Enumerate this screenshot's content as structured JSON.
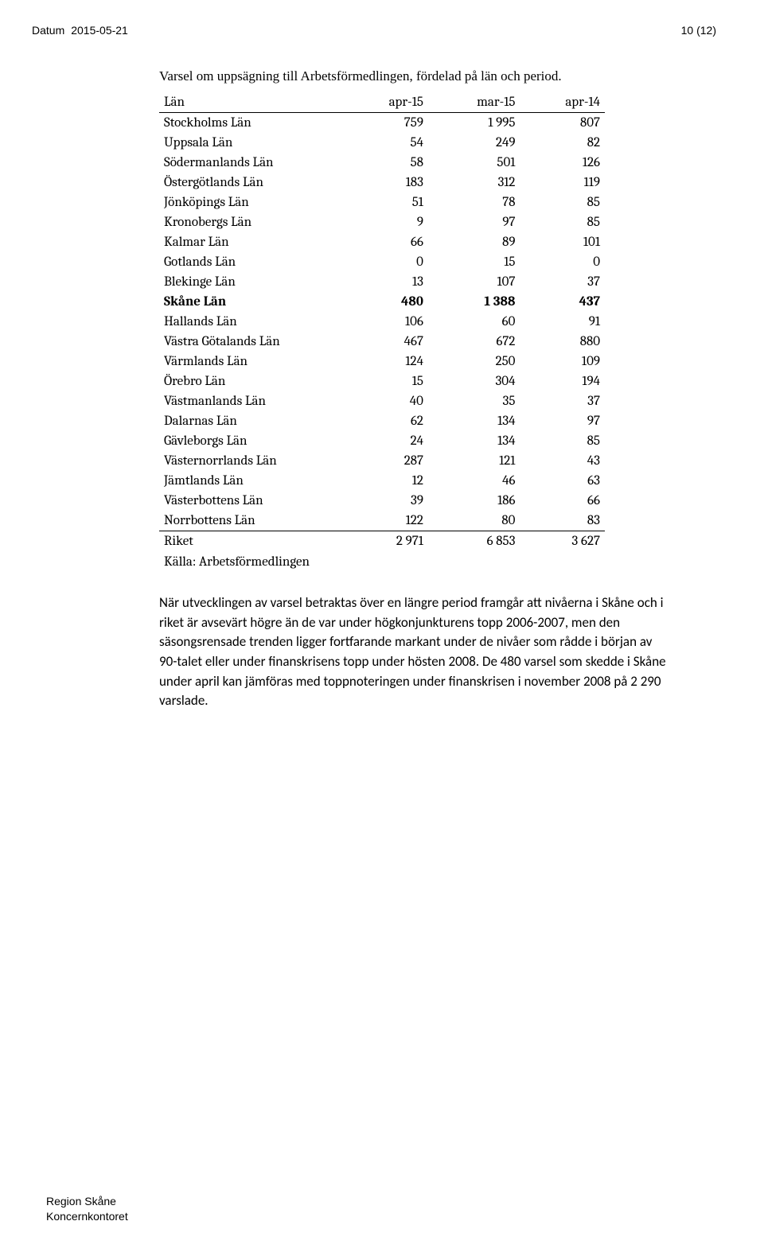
{
  "header": {
    "datum_label": "Datum",
    "date": "2015-05-21",
    "page_indicator": "10 (12)"
  },
  "intro": "Varsel om uppsägning till Arbetsförmedlingen, fördelad på län och period.",
  "table": {
    "columns": [
      "Län",
      "apr-15",
      "mar-15",
      "apr-14"
    ],
    "rows": [
      {
        "name": "Stockholms Län",
        "c1": "759",
        "c2": "1 995",
        "c3": "807",
        "bold": false
      },
      {
        "name": "Uppsala Län",
        "c1": "54",
        "c2": "249",
        "c3": "82",
        "bold": false
      },
      {
        "name": "Södermanlands Län",
        "c1": "58",
        "c2": "501",
        "c3": "126",
        "bold": false
      },
      {
        "name": "Östergötlands Län",
        "c1": "183",
        "c2": "312",
        "c3": "119",
        "bold": false
      },
      {
        "name": "Jönköpings Län",
        "c1": "51",
        "c2": "78",
        "c3": "85",
        "bold": false
      },
      {
        "name": "Kronobergs Län",
        "c1": "9",
        "c2": "97",
        "c3": "85",
        "bold": false
      },
      {
        "name": "Kalmar Län",
        "c1": "66",
        "c2": "89",
        "c3": "101",
        "bold": false
      },
      {
        "name": "Gotlands Län",
        "c1": "0",
        "c2": "15",
        "c3": "0",
        "bold": false
      },
      {
        "name": "Blekinge Län",
        "c1": "13",
        "c2": "107",
        "c3": "37",
        "bold": false
      },
      {
        "name": "Skåne Län",
        "c1": "480",
        "c2": "1 388",
        "c3": "437",
        "bold": true
      },
      {
        "name": "Hallands Län",
        "c1": "106",
        "c2": "60",
        "c3": "91",
        "bold": false
      },
      {
        "name": "Västra Götalands Län",
        "c1": "467",
        "c2": "672",
        "c3": "880",
        "bold": false
      },
      {
        "name": "Värmlands Län",
        "c1": "124",
        "c2": "250",
        "c3": "109",
        "bold": false
      },
      {
        "name": "Örebro Län",
        "c1": "15",
        "c2": "304",
        "c3": "194",
        "bold": false
      },
      {
        "name": "Västmanlands Län",
        "c1": "40",
        "c2": "35",
        "c3": "37",
        "bold": false
      },
      {
        "name": "Dalarnas Län",
        "c1": "62",
        "c2": "134",
        "c3": "97",
        "bold": false
      },
      {
        "name": "Gävleborgs Län",
        "c1": "24",
        "c2": "134",
        "c3": "85",
        "bold": false
      },
      {
        "name": "Västernorrlands Län",
        "c1": "287",
        "c2": "121",
        "c3": "43",
        "bold": false
      },
      {
        "name": "Jämtlands Län",
        "c1": "12",
        "c2": "46",
        "c3": "63",
        "bold": false
      },
      {
        "name": "Västerbottens Län",
        "c1": "39",
        "c2": "186",
        "c3": "66",
        "bold": false
      },
      {
        "name": "Norrbottens Län",
        "c1": "122",
        "c2": "80",
        "c3": "83",
        "bold": false
      }
    ],
    "total": {
      "name": "Riket",
      "c1": "2 971",
      "c2": "6 853",
      "c3": "3 627"
    },
    "source": "Källa: Arbetsförmedlingen"
  },
  "body": "När utvecklingen av varsel betraktas över en längre period framgår att nivåerna i Skåne och i riket är avsevärt högre än de var under högkonjunkturens topp 2006-2007, men den säsongsrensade trenden ligger fortfarande markant under de nivåer som rådde i början av 90-talet eller under finanskrisens topp under hösten 2008. De 480 varsel som skedde i Skåne under april kan jämföras med toppnoteringen under finanskrisen i november 2008 på 2 290 varslade.",
  "footer": {
    "line1": "Region Skåne",
    "line2": "Koncernkontoret"
  }
}
